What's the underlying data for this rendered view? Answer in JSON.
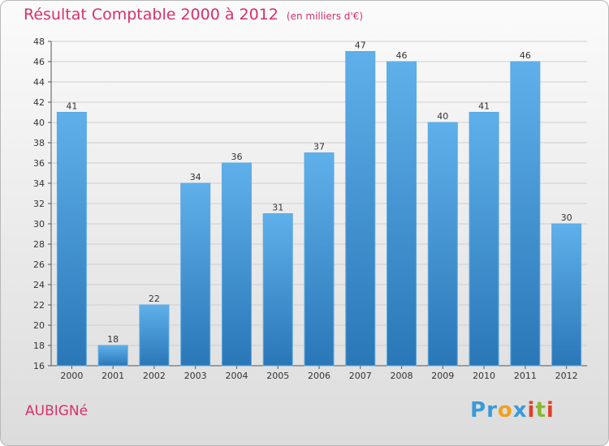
{
  "title": "Résultat Comptable 2000 à 2012",
  "subtitle": "(en milliers d'€)",
  "commune": "AUBIGNé",
  "logo": {
    "text": "Proxiti",
    "letters": [
      {
        "ch": "P",
        "color": "#3a9ad8"
      },
      {
        "ch": "r",
        "color": "#3a9ad8"
      },
      {
        "ch": "o",
        "color": "#f0a020"
      },
      {
        "ch": "x",
        "color": "#3a9ad8"
      },
      {
        "ch": "i",
        "color": "#e0402a"
      },
      {
        "ch": "t",
        "color": "#8ab830"
      },
      {
        "ch": "i",
        "color": "#e0402a"
      }
    ]
  },
  "chart_data": {
    "type": "bar",
    "title": "Résultat Comptable 2000 à 2012",
    "subtitle": "(en milliers d'€)",
    "categories": [
      "2000",
      "2001",
      "2002",
      "2003",
      "2004",
      "2005",
      "2006",
      "2007",
      "2008",
      "2009",
      "2010",
      "2011",
      "2012"
    ],
    "values": [
      41,
      18,
      22,
      34,
      36,
      31,
      37,
      47,
      46,
      40,
      41,
      46,
      30
    ],
    "ylim": [
      16,
      48
    ],
    "yticks": [
      16,
      18,
      20,
      22,
      24,
      26,
      28,
      30,
      32,
      34,
      36,
      38,
      40,
      42,
      44,
      46,
      48
    ],
    "grid": true,
    "bar_color": "#3d8fd0"
  }
}
